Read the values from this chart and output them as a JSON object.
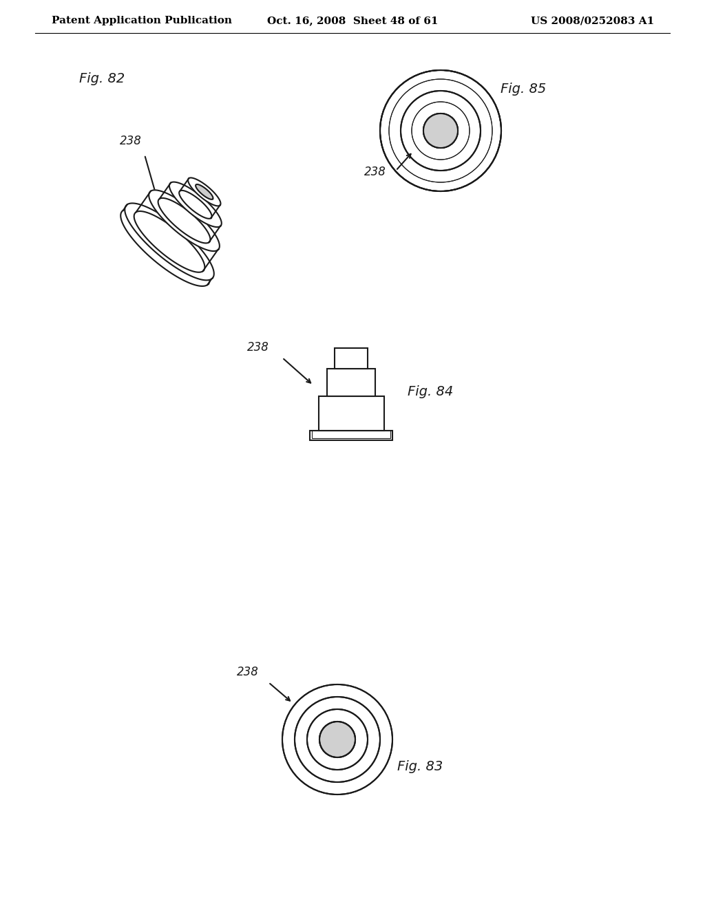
{
  "background_color": "#ffffff",
  "header_left": "Patent Application Publication",
  "header_center": "Oct. 16, 2008  Sheet 48 of 61",
  "header_right": "US 2008/0252083 A1",
  "header_fontsize": 11,
  "fig82_label": "Fig. 82",
  "fig83_label": "Fig. 83",
  "fig84_label": "Fig. 84",
  "fig85_label": "Fig. 85",
  "ref_num": "238",
  "line_color": "#1a1a1a",
  "line_width": 1.5,
  "thin_line": 0.8
}
